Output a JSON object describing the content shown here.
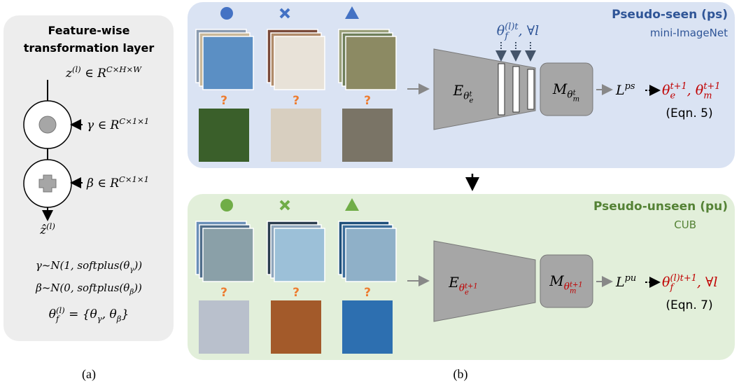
{
  "panel_a": {
    "title": [
      "Feature-wise",
      "transformation layer"
    ],
    "z_in": [
      {
        "n": "z"
      },
      {
        "sup": "(l)"
      },
      {
        "n": " ∈ R"
      },
      {
        "sup": "C×H×W"
      }
    ],
    "gamma": [
      {
        "n": "γ ∈ R"
      },
      {
        "sup": "C×1×1"
      }
    ],
    "beta": [
      {
        "n": "β ∈ R"
      },
      {
        "sup": "C×1×1"
      }
    ],
    "z_out": [
      {
        "n": "ẑ"
      },
      {
        "sup": "(l)"
      }
    ],
    "gamma_dist": [
      {
        "n": "γ~N(1, softplus(θ"
      },
      {
        "sub": "γ"
      },
      {
        "n": "))"
      }
    ],
    "beta_dist": [
      {
        "n": "β~N(0, softplus(θ"
      },
      {
        "sub": "β"
      },
      {
        "n": "))"
      }
    ],
    "theta_f": [
      {
        "n": "θ"
      },
      {
        "sub": "f"
      },
      {
        "sup": "(l)"
      },
      {
        "n": " = {θ"
      },
      {
        "sub": "γ"
      },
      {
        "n": ", θ"
      },
      {
        "sub": "β"
      },
      {
        "n": "}"
      }
    ],
    "caption": "(a)"
  },
  "panel_b": {
    "caption": "(b)",
    "pseudo_seen": {
      "title": "Pseudo-seen (ps)",
      "dataset": "mini-ImageNet",
      "query_marks": [
        "?",
        "?",
        "?"
      ],
      "film_params": [
        {
          "n": "θ"
        },
        {
          "sub": "f"
        },
        {
          "sup": "(l)t"
        },
        {
          "n": ", ∀l"
        }
      ],
      "encoder": [
        {
          "n": "E"
        },
        {
          "sub": "θ"
        },
        {
          "subsub": "e"
        },
        {
          "subsup": "t"
        }
      ],
      "metric": [
        {
          "n": "M"
        },
        {
          "sub": "θ"
        },
        {
          "subsub": "m"
        },
        {
          "subsup": "t"
        }
      ],
      "loss": [
        {
          "n": "L"
        },
        {
          "sup": "ps"
        }
      ],
      "update": [
        {
          "n": "θ"
        },
        {
          "sub": "e"
        },
        {
          "sup": "t+1"
        },
        {
          "n": ", θ"
        },
        {
          "sub": "m"
        },
        {
          "sup": "t+1"
        }
      ],
      "equation": "(Eqn. 5)"
    },
    "pseudo_unseen": {
      "title": "Pseudo-unseen (pu)",
      "dataset": "CUB",
      "query_marks": [
        "?",
        "?",
        "?"
      ],
      "encoder": [
        {
          "n": "E"
        },
        {
          "sub": "θ",
          "color": "#c00000"
        },
        {
          "subsub": "e",
          "color": "#c00000"
        },
        {
          "subsup": "t+1",
          "color": "#c00000"
        }
      ],
      "metric": [
        {
          "n": "M"
        },
        {
          "sub": "θ",
          "color": "#c00000"
        },
        {
          "subsub": "m",
          "color": "#c00000"
        },
        {
          "subsup": "t+1",
          "color": "#c00000"
        }
      ],
      "loss": [
        {
          "n": "L"
        },
        {
          "sup": "pu"
        }
      ],
      "update": [
        {
          "n": "θ"
        },
        {
          "sub": "f"
        },
        {
          "sup": "(l)t+1"
        },
        {
          "n": ", ∀l"
        }
      ],
      "equation": "(Eqn. 7)"
    }
  }
}
